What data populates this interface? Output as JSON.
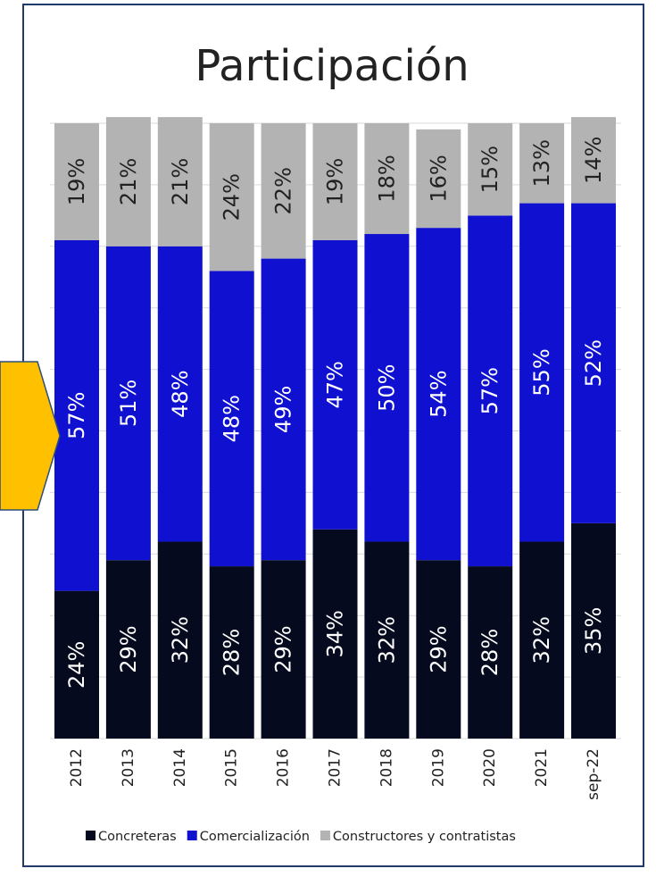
{
  "chart_data": {
    "type": "bar",
    "stacked": true,
    "percent_stacked": true,
    "title": "Participación",
    "orientation": "vertical",
    "categories": [
      "2012",
      "2013",
      "2014",
      "2015",
      "2016",
      "2017",
      "2018",
      "2019",
      "2020",
      "2021",
      "sep-22"
    ],
    "series": [
      {
        "name": "Concreteras",
        "color": "#050a1e",
        "values": [
          24,
          29,
          32,
          28,
          29,
          34,
          32,
          29,
          28,
          32,
          35
        ],
        "labels": [
          "24%",
          "29%",
          "32%",
          "28%",
          "29%",
          "34%",
          "32%",
          "29%",
          "28%",
          "32%",
          "35%"
        ]
      },
      {
        "name": "Comercialización",
        "color": "#1010d0",
        "values": [
          57,
          51,
          48,
          48,
          49,
          47,
          50,
          54,
          57,
          55,
          52
        ],
        "labels": [
          "57%",
          "51%",
          "48%",
          "48%",
          "49%",
          "47%",
          "50%",
          "54%",
          "57%",
          "55%",
          "52%"
        ]
      },
      {
        "name": "Constructores y contratistas",
        "color": "#b3b3b3",
        "values": [
          19,
          21,
          21,
          24,
          22,
          19,
          18,
          16,
          15,
          13,
          14
        ],
        "labels": [
          "19%",
          "21%",
          "21%",
          "24%",
          "22%",
          "19%",
          "18%",
          "16%",
          "15%",
          "13%",
          "14%"
        ]
      }
    ],
    "ylim": [
      0,
      100
    ],
    "legend_position": "bottom",
    "data_labels": "rotated-vertical",
    "tick_labels": "rotated-vertical",
    "grid": true
  },
  "colors": {
    "frame_border": "#1f3a6b",
    "arrow_fill": "#ffc000",
    "arrow_stroke": "#2f4e78",
    "label_text": "#ffffff",
    "label_text_top": "#222222",
    "axis_text": "#222222"
  }
}
